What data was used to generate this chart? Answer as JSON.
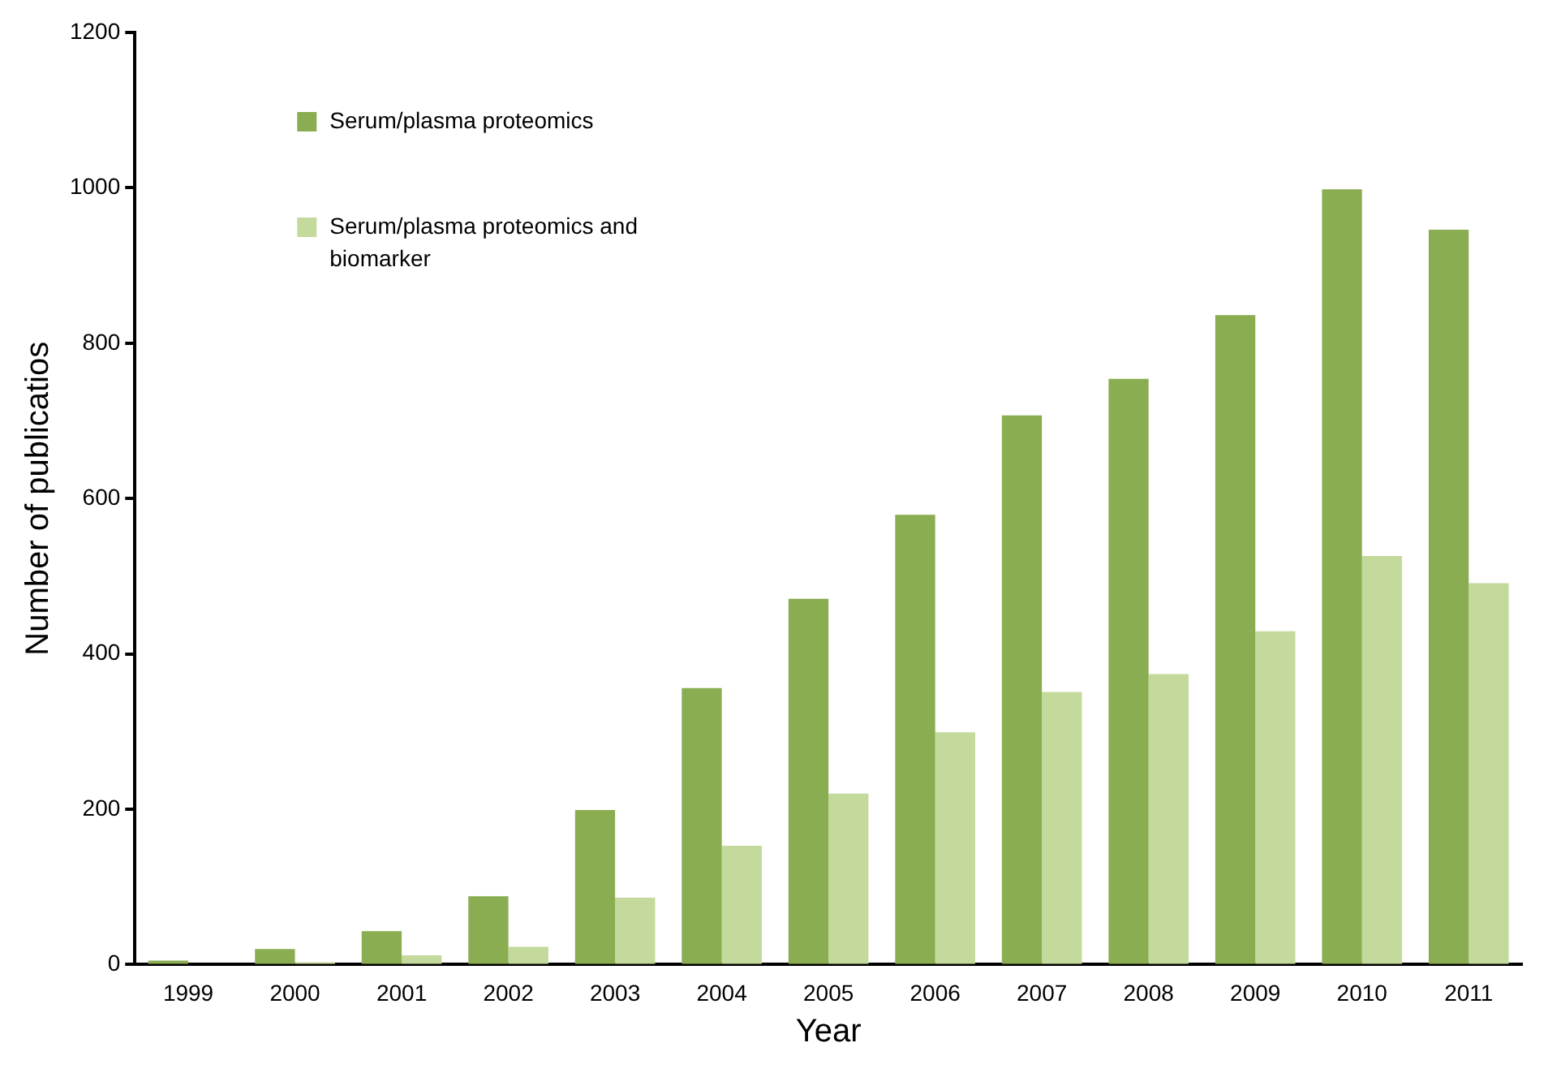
{
  "chart_data": {
    "type": "bar",
    "xlabel": "Year",
    "ylabel": "Number of publicatios",
    "categories": [
      "1999",
      "2000",
      "2001",
      "2002",
      "2003",
      "2004",
      "2005",
      "2006",
      "2007",
      "2008",
      "2009",
      "2010",
      "2011"
    ],
    "series": [
      {
        "name": "Serum/plasma proteomics",
        "color": "#8aad52",
        "values": [
          5,
          20,
          43,
          88,
          199,
          356,
          471,
          579,
          707,
          754,
          836,
          998,
          946
        ]
      },
      {
        "name": "Serum/plasma proteomics and biomarker",
        "color": "#c3da9c",
        "values": [
          0,
          3,
          12,
          23,
          86,
          153,
          220,
          299,
          351,
          374,
          429,
          526,
          491
        ]
      }
    ],
    "ylim": [
      0,
      1200
    ],
    "yticks": [
      0,
      200,
      400,
      600,
      800,
      1000,
      1200
    ],
    "grid": false,
    "legend": "top left"
  }
}
